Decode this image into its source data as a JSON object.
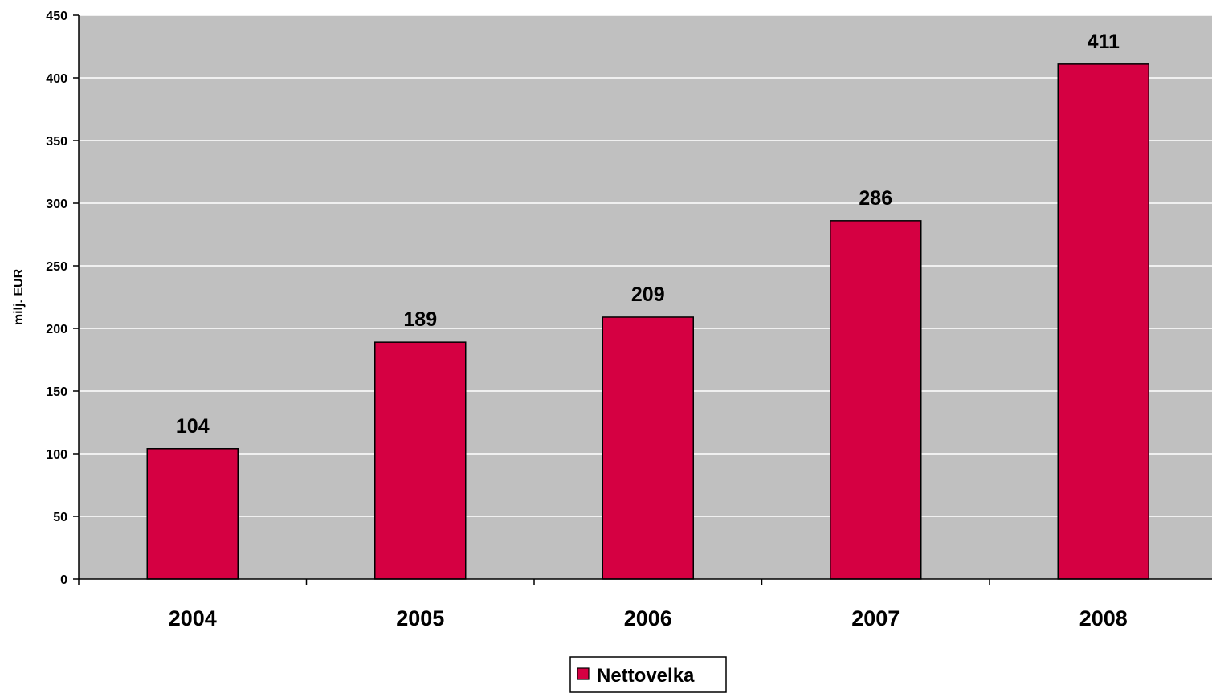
{
  "chart_data": {
    "type": "bar",
    "categories": [
      "2004",
      "2005",
      "2006",
      "2007",
      "2008"
    ],
    "series": [
      {
        "name": "Nettovelka",
        "values": [
          104,
          189,
          209,
          286,
          411
        ]
      }
    ],
    "data_labels": [
      "104",
      "189",
      "209",
      "286",
      "411"
    ],
    "title": "",
    "xlabel": "",
    "ylabel": "milj. EUR",
    "ylim": [
      0,
      450
    ],
    "yticks": [
      0,
      50,
      100,
      150,
      200,
      250,
      300,
      350,
      400,
      450
    ],
    "grid": true,
    "legend": "bottom-center",
    "colors": {
      "bar": "#D50042",
      "plot_background": "#C0C0C0",
      "gridline": "#FFFFFF",
      "axis": "#000000"
    }
  }
}
